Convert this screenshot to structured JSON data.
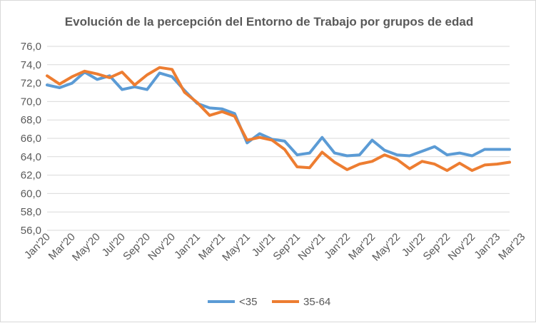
{
  "chart_data": {
    "type": "line",
    "title": "Evolución de la percepción del Entorno de Trabajo por grupos de edad",
    "xlabel": "",
    "ylabel": "",
    "ylim": [
      56,
      76
    ],
    "y_ticks": [
      "56,0",
      "58,0",
      "60,0",
      "62,0",
      "64,0",
      "66,0",
      "68,0",
      "70,0",
      "72,0",
      "74,0",
      "76,0"
    ],
    "x_tick_labels": [
      "Jan'20",
      "Mar'20",
      "May'20",
      "Jul'20",
      "Sep'20",
      "Nov'20",
      "Jan'21",
      "Mar'21",
      "May'21",
      "Jul'21",
      "Sep'21",
      "Nov'21",
      "Jan'22",
      "Mar'22",
      "May'22",
      "Jul'22",
      "Sep'22",
      "Nov'22",
      "Jan'23",
      "Mar'23"
    ],
    "grid": true,
    "legend_position": "bottom",
    "series": [
      {
        "name": "<35",
        "color": "#5b9bd5",
        "values": [
          71.8,
          71.5,
          72.0,
          73.2,
          72.4,
          72.8,
          71.3,
          71.6,
          71.3,
          73.1,
          72.7,
          71.2,
          69.8,
          69.3,
          69.2,
          68.7,
          65.5,
          66.5,
          65.9,
          65.7,
          64.2,
          64.4,
          66.1,
          64.4,
          64.1,
          64.2,
          65.8,
          64.7,
          64.2,
          64.1,
          64.6,
          65.1,
          64.2,
          64.4,
          64.1,
          64.8,
          64.8,
          64.8
        ]
      },
      {
        "name": "35-64",
        "color": "#ed7d31",
        "values": [
          72.8,
          71.9,
          72.7,
          73.3,
          73.0,
          72.6,
          73.2,
          71.8,
          72.9,
          73.7,
          73.5,
          71.0,
          69.9,
          68.5,
          68.9,
          68.4,
          65.8,
          66.1,
          65.8,
          64.8,
          62.9,
          62.8,
          64.5,
          63.4,
          62.6,
          63.2,
          63.5,
          64.2,
          63.7,
          62.7,
          63.5,
          63.2,
          62.5,
          63.3,
          62.5,
          63.1,
          63.2,
          63.4
        ]
      }
    ]
  }
}
